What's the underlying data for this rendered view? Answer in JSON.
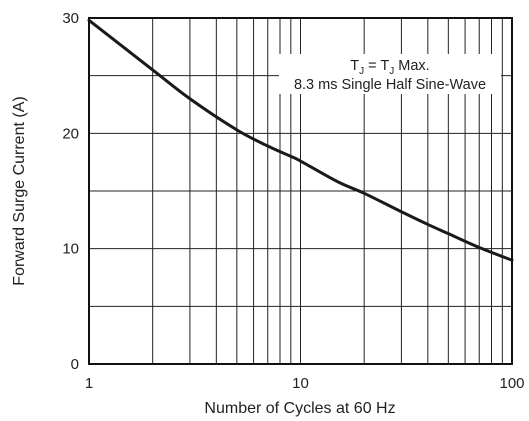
{
  "chart_data": {
    "type": "line",
    "title": "",
    "xlabel": "Number of Cycles at 60 Hz",
    "ylabel": "Forward Surge Current (A)",
    "x_scale": "log",
    "xlim": [
      1,
      100
    ],
    "ylim": [
      0,
      30
    ],
    "grid": true,
    "x_ticks": [
      1,
      10,
      100
    ],
    "x_tick_labels": [
      "1",
      "10",
      "100"
    ],
    "y_ticks": [
      0,
      10,
      20,
      30
    ],
    "y_tick_labels": [
      "0",
      "10",
      "20",
      "30"
    ],
    "series": [
      {
        "name": "",
        "x": [
          1,
          2,
          3,
          5,
          7,
          9,
          10,
          15,
          20,
          30,
          40,
          50,
          70,
          100
        ],
        "y": [
          29.8,
          25.5,
          23.0,
          20.3,
          18.9,
          18.0,
          17.6,
          15.8,
          14.8,
          13.2,
          12.1,
          11.3,
          10.1,
          9.0
        ]
      }
    ],
    "annotation": {
      "line1_main": "T",
      "line1_sub1": "J",
      "line1_mid": " = T",
      "line1_sub2": "J",
      "line1_end": " Max.",
      "line2": "8.3 ms Single Half Sine-Wave"
    },
    "colors": {
      "line": "#1a1a1a",
      "grid": "#222222",
      "frame": "#111111"
    }
  }
}
